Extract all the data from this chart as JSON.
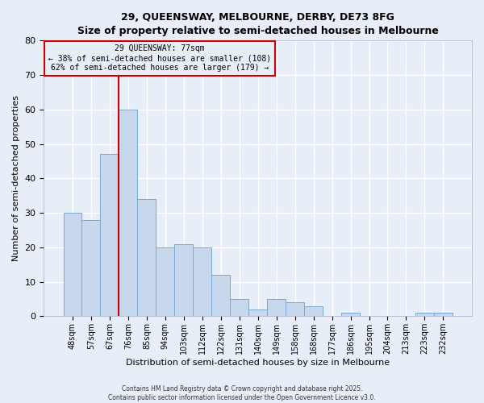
{
  "title": "29, QUEENSWAY, MELBOURNE, DERBY, DE73 8FG",
  "subtitle": "Size of property relative to semi-detached houses in Melbourne",
  "xlabel": "Distribution of semi-detached houses by size in Melbourne",
  "ylabel": "Number of semi-detached properties",
  "footnote1": "Contains HM Land Registry data © Crown copyright and database right 2025.",
  "footnote2": "Contains public sector information licensed under the Open Government Licence v3.0.",
  "bar_labels": [
    "48sqm",
    "57sqm",
    "67sqm",
    "76sqm",
    "85sqm",
    "94sqm",
    "103sqm",
    "112sqm",
    "122sqm",
    "131sqm",
    "140sqm",
    "149sqm",
    "158sqm",
    "168sqm",
    "177sqm",
    "186sqm",
    "195sqm",
    "204sqm",
    "213sqm",
    "223sqm",
    "232sqm"
  ],
  "bar_values": [
    30,
    28,
    47,
    60,
    34,
    20,
    21,
    20,
    12,
    5,
    2,
    5,
    4,
    3,
    0,
    1,
    0,
    0,
    0,
    1,
    1
  ],
  "bar_color": "#c8d8ec",
  "bar_edge_color": "#7aaacf",
  "vline_color": "#cc0000",
  "annotation_title": "29 QUEENSWAY: 77sqm",
  "annotation_line1": "← 38% of semi-detached houses are smaller (108)",
  "annotation_line2": "62% of semi-detached houses are larger (179) →",
  "annotation_box_edge": "#cc0000",
  "ylim": [
    0,
    80
  ],
  "background_color": "#e8eef8",
  "grid_color": "#ffffff"
}
